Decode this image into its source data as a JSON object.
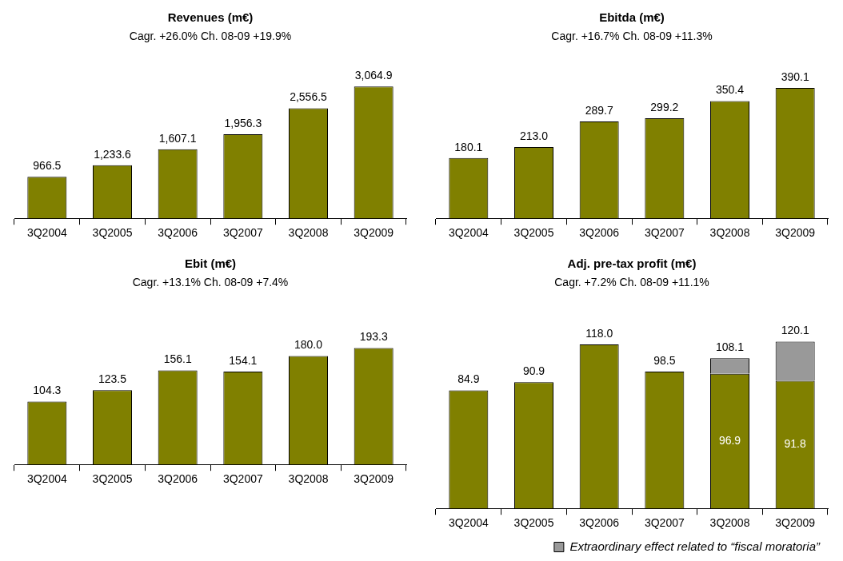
{
  "chart_data": [
    {
      "type": "bar",
      "title": "Revenues (m€)",
      "subtitle": "Cagr. +26.0% Ch. 08-09 +19.9%",
      "categories": [
        "3Q2004",
        "3Q2005",
        "3Q2006",
        "3Q2007",
        "3Q2008",
        "3Q2009"
      ],
      "series": [
        {
          "color": "#808000",
          "values": [
            966.5,
            1233.6,
            1607.1,
            1956.3,
            2556.5,
            3064.9
          ],
          "value_labels": [
            "966.5",
            "1,233.6",
            "1,607.1",
            "1,956.3",
            "2,556.5",
            "3,064.9"
          ]
        }
      ],
      "legend": false
    },
    {
      "type": "bar",
      "title": "Ebitda (m€)",
      "subtitle": "Cagr. +16.7% Ch. 08-09 +11.3%",
      "categories": [
        "3Q2004",
        "3Q2005",
        "3Q2006",
        "3Q2007",
        "3Q2008",
        "3Q2009"
      ],
      "series": [
        {
          "color": "#808000",
          "values": [
            180.1,
            213.0,
            289.7,
            299.2,
            350.4,
            390.1
          ],
          "value_labels": [
            "180.1",
            "213.0",
            "289.7",
            "299.2",
            "350.4",
            "390.1"
          ]
        }
      ],
      "legend": false
    },
    {
      "type": "bar",
      "title": "Ebit (m€)",
      "subtitle": "Cagr. +13.1% Ch. 08-09 +7.4%",
      "categories": [
        "3Q2004",
        "3Q2005",
        "3Q2006",
        "3Q2007",
        "3Q2008",
        "3Q2009"
      ],
      "series": [
        {
          "color": "#808000",
          "values": [
            104.3,
            123.5,
            156.1,
            154.1,
            180.0,
            193.3
          ],
          "value_labels": [
            "104.3",
            "123.5",
            "156.1",
            "154.1",
            "180.0",
            "193.3"
          ]
        }
      ],
      "legend": false
    },
    {
      "type": "bar",
      "title": "Adj. pre-tax profit (m€)",
      "subtitle": "Cagr. +7.2% Ch. 08-09 +11.1%",
      "categories": [
        "3Q2004",
        "3Q2005",
        "3Q2006",
        "3Q2007",
        "3Q2008",
        "3Q2009"
      ],
      "stacked": true,
      "series": [
        {
          "color": "#808000",
          "values": [
            84.9,
            90.9,
            118.0,
            98.5,
            96.9,
            91.8
          ],
          "value_labels": [
            "84.9",
            "90.9",
            "118.0",
            "98.5",
            "96.9",
            "91.8"
          ]
        },
        {
          "name": "Extraordinary effect related to “fiscal moratoria”",
          "color": "#999999",
          "values": [
            null,
            null,
            null,
            null,
            11.2,
            28.3
          ]
        }
      ],
      "totals": [
        null,
        null,
        null,
        null,
        "108.1",
        "120.1"
      ],
      "legend": "bottom right"
    }
  ]
}
